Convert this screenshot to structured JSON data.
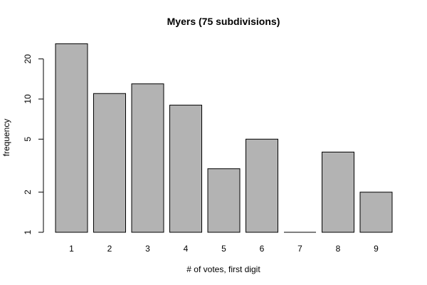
{
  "chart_data": {
    "type": "bar",
    "title": "Myers (75 subdivisions)",
    "xlabel": "# of votes, first digit",
    "ylabel": "frequency",
    "categories": [
      "1",
      "2",
      "3",
      "4",
      "5",
      "6",
      "7",
      "8",
      "9"
    ],
    "values": [
      26,
      11,
      13,
      9,
      3,
      5,
      1,
      4,
      2
    ],
    "y_scale": "log",
    "ylim": [
      1,
      30
    ],
    "y_ticks": [
      1,
      2,
      5,
      10,
      20
    ],
    "grid": false,
    "legend": "none",
    "colors": {
      "bar_fill": "#b3b3b3",
      "bar_stroke": "#000000"
    }
  }
}
